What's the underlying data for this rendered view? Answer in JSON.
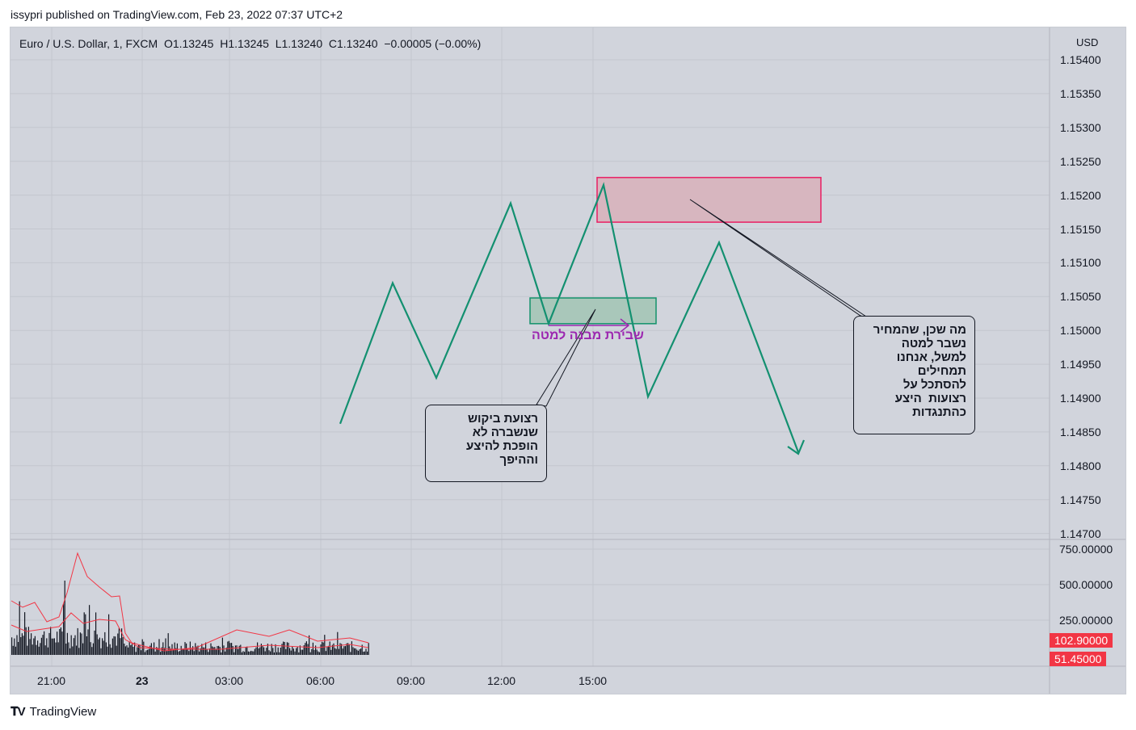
{
  "header": {
    "publish_line": "issypri published on TradingView.com, Feb 23, 2022 07:37 UTC+2"
  },
  "legend": {
    "text": "Euro / U.S. Dollar, 1, FXCM  O1.13245  H1.13245  L1.13240  C1.13240  −0.00005 (−0.00%)",
    "symbol": "Euro / U.S. Dollar",
    "interval": "1",
    "exchange": "FXCM",
    "open": "1.13245",
    "high": "1.13245",
    "low": "1.13240",
    "close": "1.13240",
    "change": "−0.00005 (−0.00%)"
  },
  "price_axis": {
    "currency": "USD",
    "ticks": [
      "1.15400",
      "1.15350",
      "1.15300",
      "1.15250",
      "1.15200",
      "1.15150",
      "1.15100",
      "1.15050",
      "1.15000",
      "1.14950",
      "1.14900",
      "1.14850",
      "1.14800",
      "1.14750",
      "1.14700"
    ]
  },
  "volume_axis": {
    "ticks": [
      "750.00000",
      "500.00000",
      "250.00000"
    ],
    "tags": [
      "102.90000",
      "51.45000"
    ]
  },
  "time_axis": {
    "ticks": [
      "21:00",
      "23",
      "03:00",
      "06:00",
      "09:00",
      "12:00",
      "15:00"
    ]
  },
  "drawings": {
    "zigzag_prices": [
      1.14862,
      1.1507,
      1.1493,
      1.15188,
      1.1501,
      1.15215,
      1.14902,
      1.1513,
      1.1482
    ],
    "demand_zone": {
      "from": 1.1501,
      "to": 1.15048
    },
    "supply_zone": {
      "from": 1.1516,
      "to": 1.15226
    },
    "structure_break_label": "שבירת מבנה למטה",
    "callout_left": {
      "lines": [
        "רצועת ביקוש",
        "שנשברה לא",
        "הופכת להיצע",
        "וההיפך"
      ]
    },
    "callout_right": {
      "lines": [
        "מה שכן, שהמחיר",
        "נשבר למטה",
        "למשל, אנחנו",
        "תמחילים",
        "להסתכל על",
        "רצועות  היצע",
        "כהתנגדות"
      ]
    }
  },
  "brand": {
    "name": "TradingView"
  },
  "colors": {
    "background": "#d1d4dc",
    "zigzag": "#139070",
    "supply_fill": "#d7b6bf",
    "supply_border": "#e91e63",
    "demand_fill": "#a9c7ba",
    "demand_border": "#13926b",
    "volume_ma": "#f23645",
    "annotation": "#9c27b0"
  }
}
